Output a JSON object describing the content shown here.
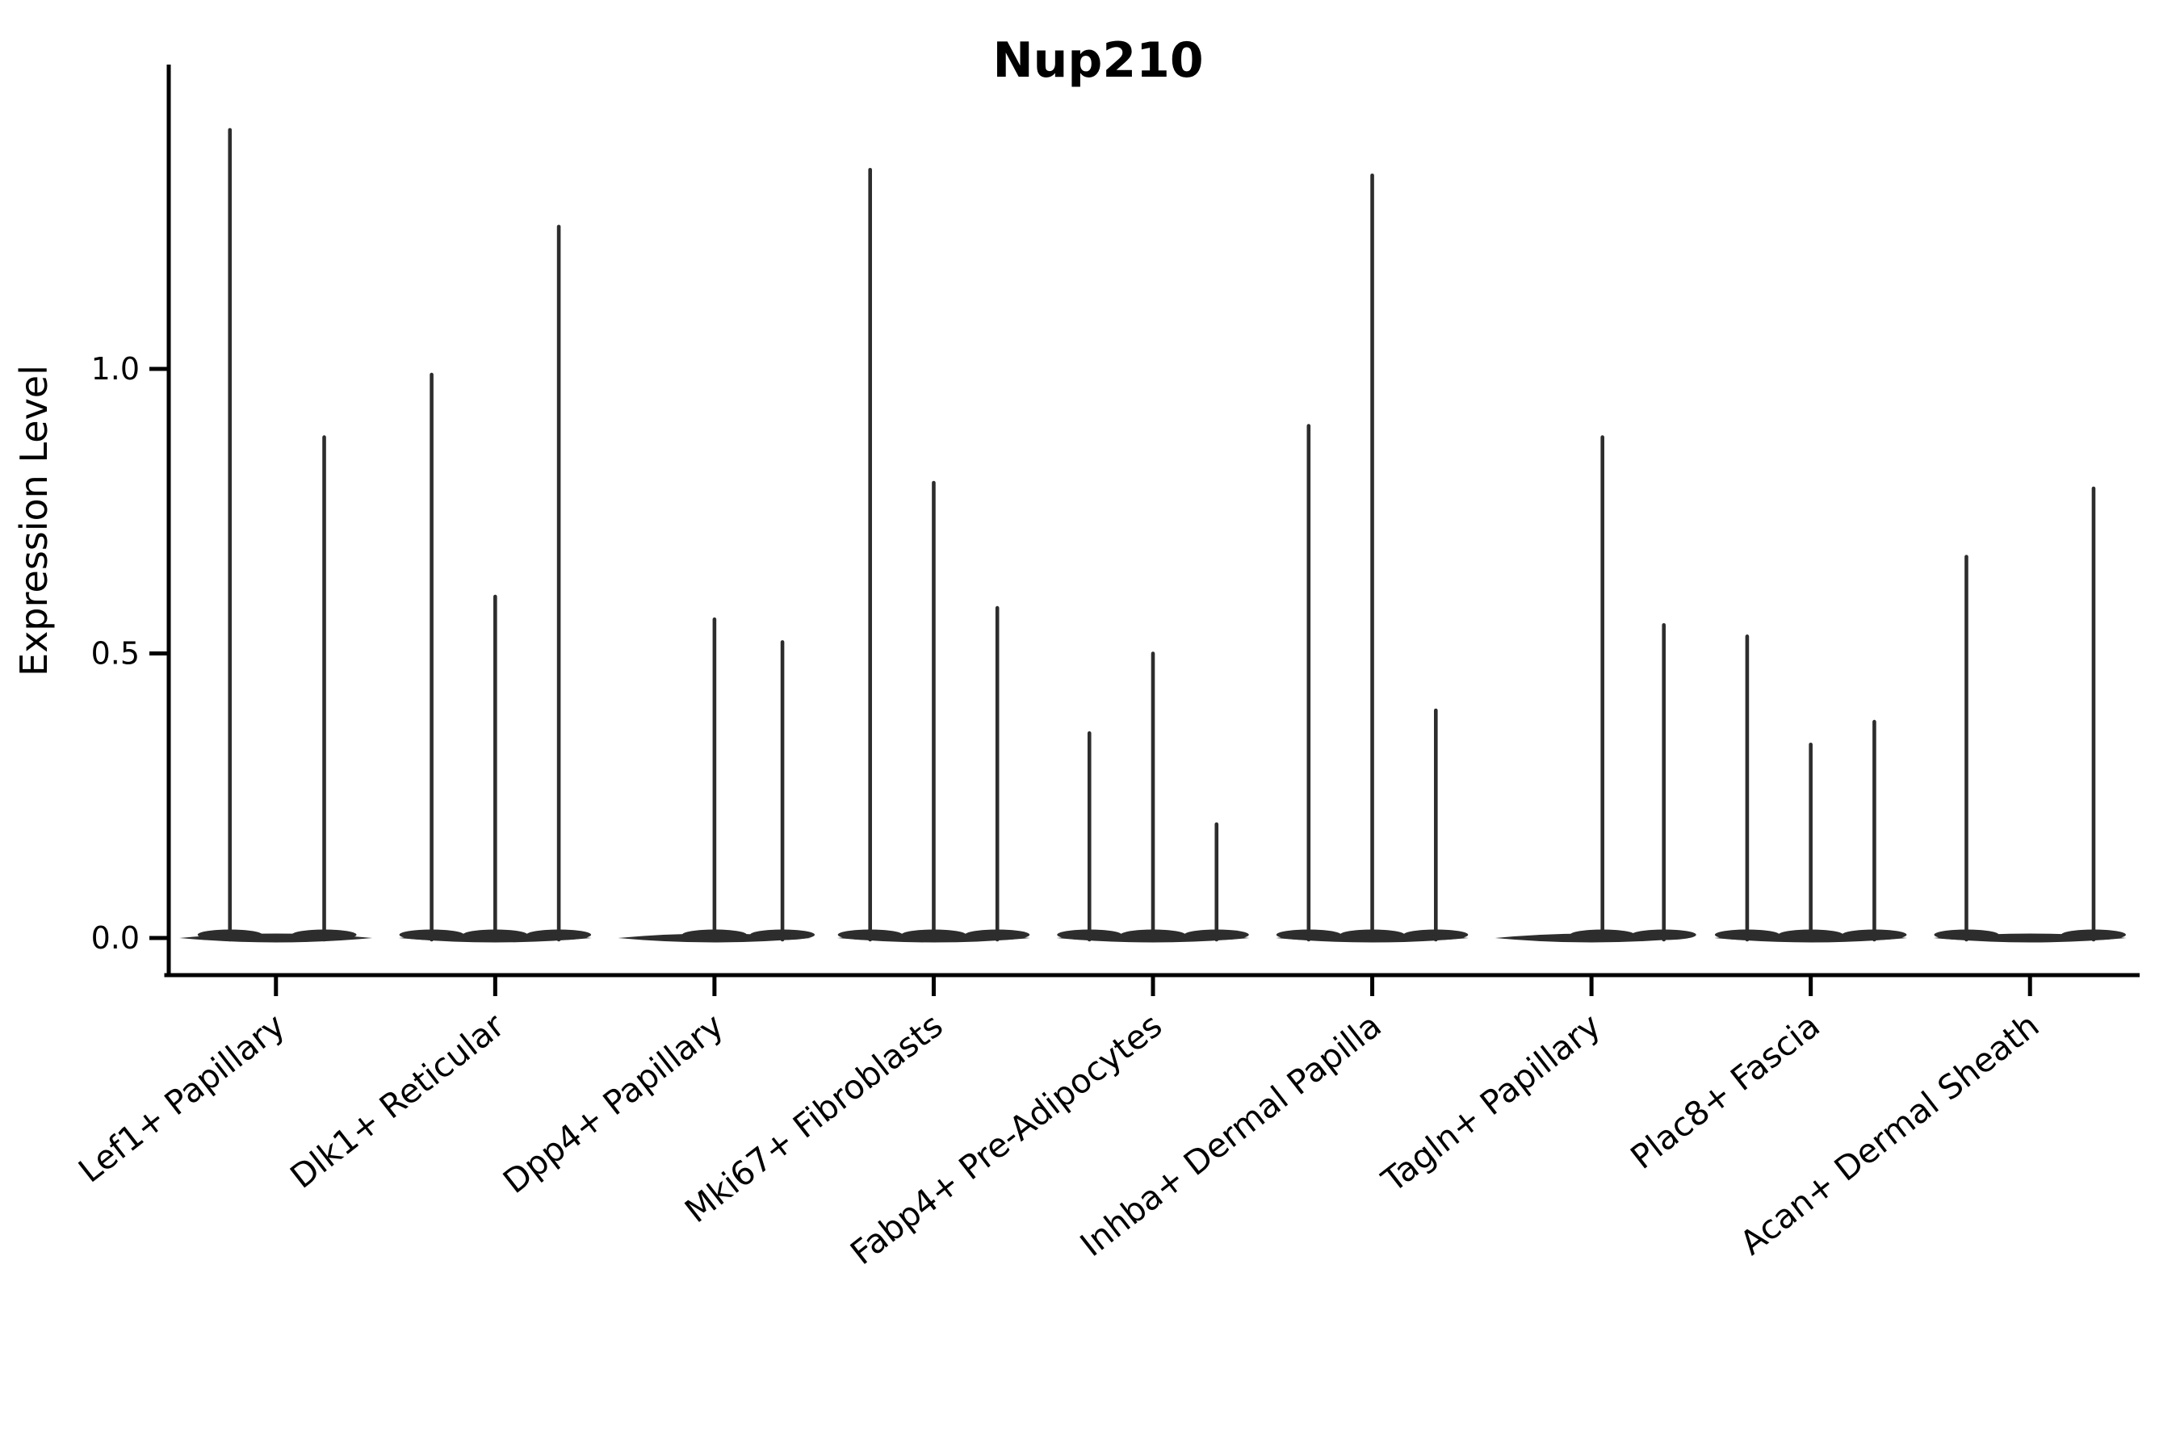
{
  "title": "Nup210",
  "axes": {
    "y_label": "Expression Level",
    "x_label": ""
  },
  "colors": {
    "ink": "#000000",
    "violin": "#2d2d2d",
    "background": "#ffffff"
  },
  "chart_data": {
    "type": "violin",
    "title": "Nup210",
    "xlabel": "",
    "ylabel": "Expression Level",
    "ylim": [
      0,
      1.53
    ],
    "grid": false,
    "legend": null,
    "yticks": [
      {
        "value": 0.0,
        "label": "0.0"
      },
      {
        "value": 0.5,
        "label": "0.5"
      },
      {
        "value": 1.0,
        "label": "1.0"
      }
    ],
    "categories": [
      "Lef1+ Papillary",
      "Dlk1+ Reticular",
      "Dpp4+ Papillary",
      "Mki67+ Fibroblasts",
      "Fabp4+ Pre-Adipocytes",
      "Inhba+ Dermal Papilla",
      "Tagln+ Papillary",
      "Plac8+ Fascia",
      "Acan+ Dermal Sheath"
    ],
    "violins": [
      {
        "category": "Lef1+ Papillary",
        "base_half_width": 0.44,
        "spikes": [
          {
            "offset": -0.21,
            "value": 1.42
          },
          {
            "offset": 0.22,
            "value": 0.88
          }
        ]
      },
      {
        "category": "Dlk1+ Reticular",
        "base_half_width": 0.44,
        "spikes": [
          {
            "offset": -0.29,
            "value": 0.99
          },
          {
            "offset": 0.0,
            "value": 0.6
          },
          {
            "offset": 0.29,
            "value": 1.25
          }
        ]
      },
      {
        "category": "Dpp4+ Papillary",
        "base_half_width": 0.44,
        "spikes": [
          {
            "offset": 0.0,
            "value": 0.56
          },
          {
            "offset": 0.31,
            "value": 0.52
          }
        ]
      },
      {
        "category": "Mki67+ Fibroblasts",
        "base_half_width": 0.44,
        "spikes": [
          {
            "offset": -0.29,
            "value": 1.35
          },
          {
            "offset": 0.0,
            "value": 0.8
          },
          {
            "offset": 0.29,
            "value": 0.58
          }
        ]
      },
      {
        "category": "Fabp4+ Pre-Adipocytes",
        "base_half_width": 0.44,
        "spikes": [
          {
            "offset": -0.29,
            "value": 0.36
          },
          {
            "offset": 0.0,
            "value": 0.5
          },
          {
            "offset": 0.29,
            "value": 0.2
          }
        ]
      },
      {
        "category": "Inhba+ Dermal Papilla",
        "base_half_width": 0.44,
        "spikes": [
          {
            "offset": -0.29,
            "value": 0.9
          },
          {
            "offset": 0.0,
            "value": 1.34
          },
          {
            "offset": 0.29,
            "value": 0.4
          }
        ]
      },
      {
        "category": "Tagln+ Papillary",
        "base_half_width": 0.44,
        "spikes": [
          {
            "offset": 0.05,
            "value": 0.88
          },
          {
            "offset": 0.33,
            "value": 0.55
          }
        ]
      },
      {
        "category": "Plac8+ Fascia",
        "base_half_width": 0.44,
        "spikes": [
          {
            "offset": -0.29,
            "value": 0.53
          },
          {
            "offset": 0.0,
            "value": 0.34
          },
          {
            "offset": 0.29,
            "value": 0.38
          }
        ]
      },
      {
        "category": "Acan+ Dermal Sheath",
        "base_half_width": 0.44,
        "spikes": [
          {
            "offset": -0.29,
            "value": 0.67
          },
          {
            "offset": 0.29,
            "value": 0.79
          }
        ]
      }
    ]
  }
}
